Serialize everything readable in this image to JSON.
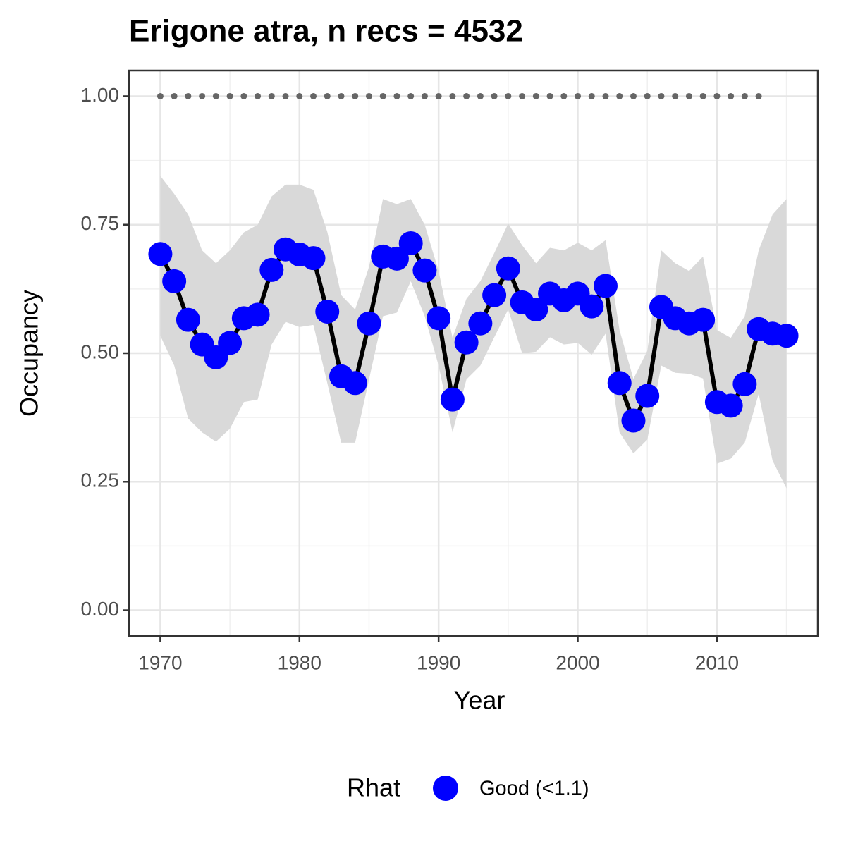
{
  "chart_data": {
    "type": "line",
    "title": "Erigone atra, n recs = 4532",
    "x_label": "Year",
    "y_label": "Occupancy",
    "legend_title": "Rhat",
    "x": [
      1970,
      1971,
      1972,
      1973,
      1974,
      1975,
      1976,
      1977,
      1978,
      1979,
      1980,
      1981,
      1982,
      1983,
      1984,
      1985,
      1986,
      1987,
      1988,
      1989,
      1990,
      1991,
      1992,
      1993,
      1994,
      1995,
      1996,
      1997,
      1998,
      1999,
      2000,
      2001,
      2002,
      2003,
      2004,
      2005,
      2006,
      2007,
      2008,
      2009,
      2010,
      2011,
      2012,
      2013,
      2014,
      2015
    ],
    "series": [
      {
        "name": "Good (<1.1)",
        "color": "#0000ff",
        "line_color": "#000000",
        "values": [
          0.693,
          0.64,
          0.565,
          0.517,
          0.492,
          0.52,
          0.568,
          0.575,
          0.662,
          0.702,
          0.692,
          0.685,
          0.581,
          0.455,
          0.442,
          0.558,
          0.688,
          0.684,
          0.714,
          0.661,
          0.568,
          0.41,
          0.521,
          0.558,
          0.613,
          0.665,
          0.599,
          0.585,
          0.616,
          0.603,
          0.616,
          0.591,
          0.631,
          0.442,
          0.369,
          0.417,
          0.59,
          0.568,
          0.558,
          0.565,
          0.405,
          0.398,
          0.44,
          0.547,
          0.538,
          0.534
        ],
        "upper": [
          0.845,
          0.81,
          0.77,
          0.7,
          0.675,
          0.7,
          0.735,
          0.75,
          0.805,
          0.828,
          0.828,
          0.818,
          0.736,
          0.613,
          0.585,
          0.668,
          0.8,
          0.79,
          0.8,
          0.75,
          0.66,
          0.53,
          0.606,
          0.64,
          0.695,
          0.752,
          0.71,
          0.675,
          0.705,
          0.7,
          0.715,
          0.7,
          0.72,
          0.545,
          0.45,
          0.505,
          0.7,
          0.675,
          0.66,
          0.688,
          0.545,
          0.53,
          0.572,
          0.7,
          0.77,
          0.8
        ],
        "lower": [
          0.534,
          0.476,
          0.373,
          0.346,
          0.328,
          0.353,
          0.405,
          0.41,
          0.517,
          0.561,
          0.551,
          0.555,
          0.442,
          0.326,
          0.326,
          0.449,
          0.572,
          0.579,
          0.64,
          0.572,
          0.476,
          0.346,
          0.449,
          0.476,
          0.531,
          0.585,
          0.5,
          0.503,
          0.531,
          0.517,
          0.52,
          0.497,
          0.538,
          0.346,
          0.305,
          0.332,
          0.476,
          0.462,
          0.46,
          0.451,
          0.285,
          0.295,
          0.326,
          0.421,
          0.291,
          0.237
        ],
        "band_color": "#d9d9d9"
      }
    ],
    "dotted": {
      "color": "#666666",
      "values": [
        1,
        1,
        1,
        1,
        1,
        1,
        1,
        1,
        1,
        1,
        1,
        1,
        1,
        1,
        1,
        1,
        1,
        1,
        1,
        1,
        1,
        1,
        1,
        1,
        1,
        1,
        1,
        1,
        1,
        1,
        1,
        1,
        1,
        1,
        1,
        1,
        1,
        1,
        1,
        1,
        1,
        1,
        1,
        1,
        null,
        null
      ]
    },
    "xlim": [
      1967.75,
      2017.25
    ],
    "ylim": [
      -0.05,
      1.05
    ],
    "xticks": [
      1970,
      1980,
      1990,
      2000,
      2010
    ],
    "yticks": [
      {
        "value": 0,
        "label": "0.00"
      },
      {
        "value": 0.25,
        "label": "0.25"
      },
      {
        "value": 0.5,
        "label": "0.50"
      },
      {
        "value": 0.75,
        "label": "0.75"
      },
      {
        "value": 1,
        "label": "1.00"
      }
    ],
    "x_minor_ticks": [
      1975,
      1985,
      1995,
      2005,
      2015
    ],
    "y_minor_ticks": [
      0.125,
      0.375,
      0.625,
      0.875
    ],
    "grid": true
  }
}
